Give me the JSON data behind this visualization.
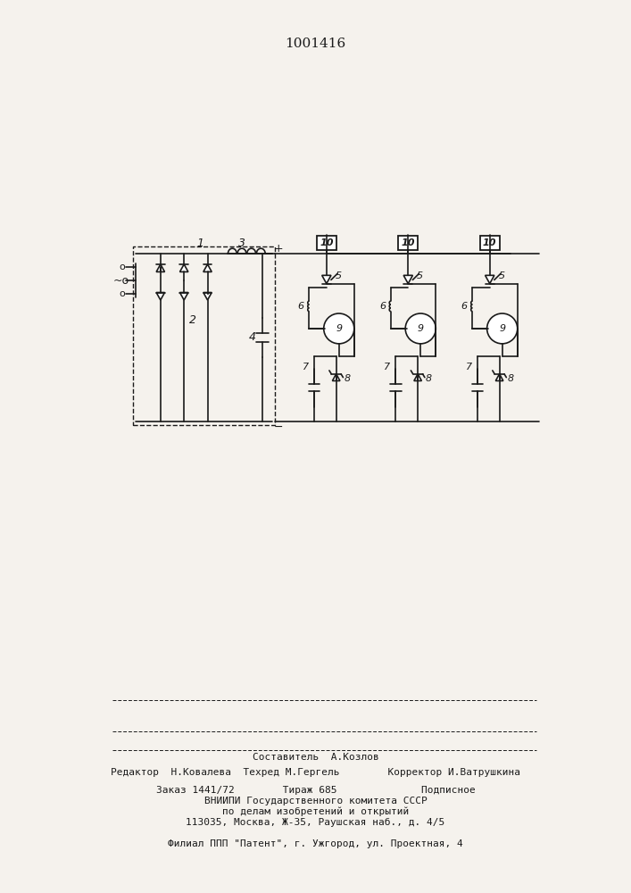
{
  "title": "1001416",
  "bg_color": "#f5f2ed",
  "line_color": "#1a1a1a",
  "bottom_lines": [
    "Составитель  А.Козлов",
    "Редактор  Н.Ковалева  Техред М.Гергель        Корректор И.Ватрушкина",
    "Заказ 1441/72        Тираж 685              Подписное",
    "ВНИИПИ Государственного комитета СССР",
    "по делам изобретений и открытий",
    "113035, Москва, Ж-35, Раушская наб., д. 4/5",
    "Филиал ППП \"Патент\", г. Ужгород, ул. Проектная, 4"
  ]
}
